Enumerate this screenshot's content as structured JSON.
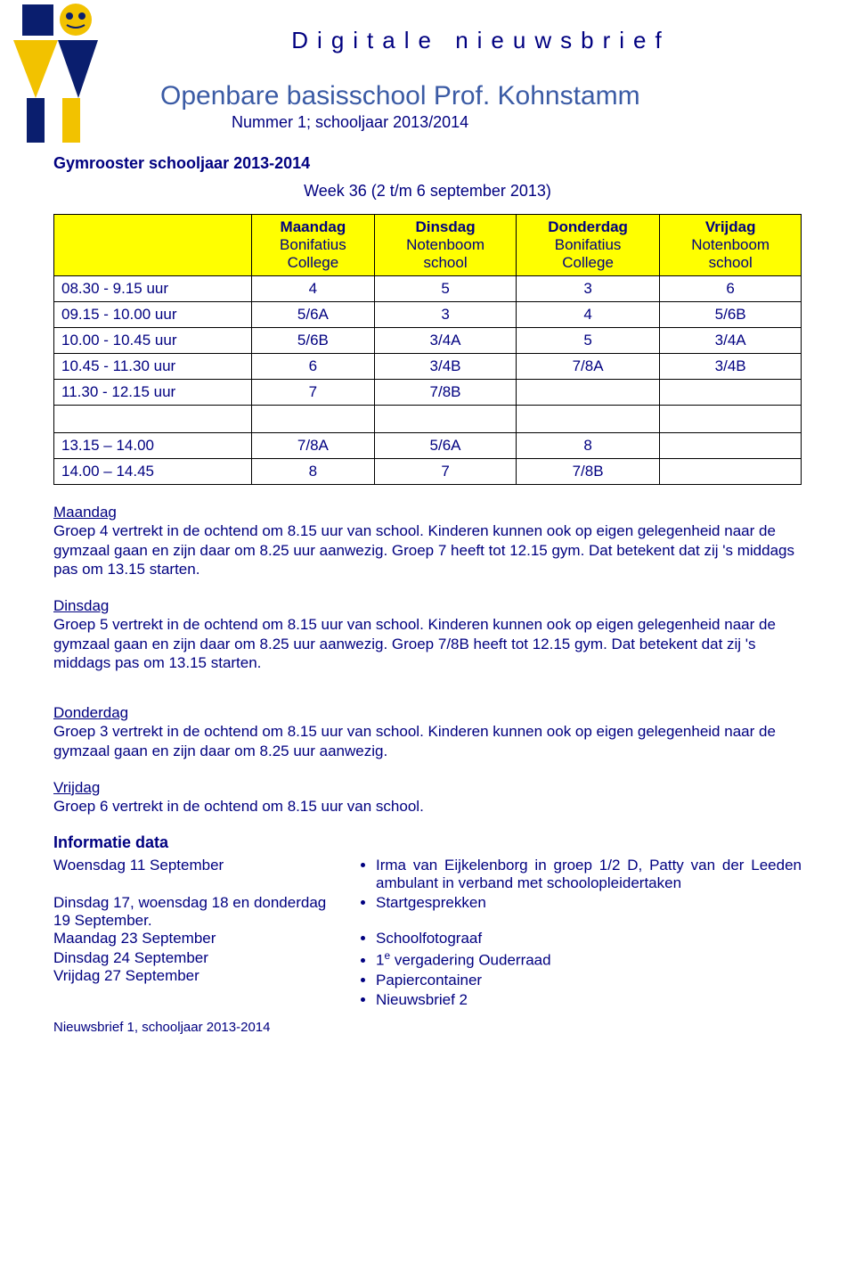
{
  "header": {
    "title_letterspaced": "Digitale nieuwsbrief",
    "subtitle": "Openbare basisschool Prof. Kohnstamm",
    "subline": "Nummer 1; schooljaar 2013/2014"
  },
  "gym": {
    "section_title": "Gymrooster schooljaar 2013-2014",
    "week_line": "Week 36  (2 t/m 6 september 2013)",
    "columns": [
      {
        "day": "Maandag",
        "loc1": "Bonifatius",
        "loc2": "College"
      },
      {
        "day": "Dinsdag",
        "loc1": "Notenboom",
        "loc2": "school"
      },
      {
        "day": "Donderdag",
        "loc1": "Bonifatius",
        "loc2": "College"
      },
      {
        "day": "Vrijdag",
        "loc1": "Notenboom",
        "loc2": "school"
      }
    ],
    "rows": [
      {
        "time": "08.30 - 9.15 uur",
        "cells": [
          "4",
          "5",
          "3",
          "6"
        ]
      },
      {
        "time": "09.15 - 10.00 uur",
        "cells": [
          "5/6A",
          "3",
          "4",
          "5/6B"
        ]
      },
      {
        "time": "10.00 - 10.45 uur",
        "cells": [
          "5/6B",
          "3/4A",
          "5",
          "3/4A"
        ]
      },
      {
        "time": "10.45 - 11.30 uur",
        "cells": [
          "6",
          "3/4B",
          "7/8A",
          "3/4B"
        ]
      },
      {
        "time": "11.30 - 12.15 uur",
        "cells": [
          "7",
          "7/8B",
          "",
          ""
        ]
      }
    ],
    "rows2": [
      {
        "time": "13.15 – 14.00",
        "cells": [
          "7/8A",
          "5/6A",
          "8",
          ""
        ]
      },
      {
        "time": "14.00 – 14.45",
        "cells": [
          "8",
          "7",
          "7/8B",
          ""
        ]
      }
    ]
  },
  "para": {
    "maandag_h": "Maandag",
    "maandag_t": "Groep 4 vertrekt in de ochtend om 8.15 uur van school. Kinderen kunnen ook op eigen gelegenheid naar de gymzaal gaan en zijn daar om 8.25 uur aanwezig. Groep  7 heeft tot 12.15 gym. Dat betekent dat zij 's middags pas om 13.15 starten.",
    "dinsdag_h": "Dinsdag",
    "dinsdag_t": "Groep 5 vertrekt in de ochtend om 8.15 uur van school. Kinderen kunnen ook op eigen gelegenheid naar de gymzaal gaan en zijn daar om 8.25 uur aanwezig. Groep 7/8B heeft  tot 12.15 gym. Dat betekent dat zij 's middags pas om 13.15 starten.",
    "donderdag_h": "Donderdag",
    "donderdag_t": "Groep  3 vertrekt in de ochtend om 8.15 uur van school. Kinderen kunnen ook op eigen gelegenheid naar de gymzaal gaan en zijn daar om 8.25 uur aanwezig.",
    "vrijdag_h": "Vrijdag",
    "vrijdag_t": "Groep 6 vertrekt in de ochtend om 8.15 uur van school."
  },
  "info": {
    "title": "Informatie data",
    "items": [
      {
        "left": "Woensdag 11 September",
        "right": [
          "Irma van Eijkelenborg in groep 1/2 D, Patty van der Leeden ambulant in verband met schoolopleidertaken"
        ]
      },
      {
        "left": "Dinsdag 17, woensdag 18 en donderdag 19 September.",
        "right": [
          "Startgesprekken"
        ]
      },
      {
        "left": "Maandag 23 September",
        "right": [
          "Schoolfotograaf"
        ]
      },
      {
        "left": "Dinsdag 24 September",
        "right": [
          "1e vergadering Ouderraad",
          "Papiercontainer",
          "Nieuwsbrief 2"
        ],
        "left2": "Vrijdag 27 September",
        "sup_first": true
      }
    ]
  },
  "footer": "Nieuwsbrief 1, schooljaar 2013-2014",
  "colors": {
    "text": "#000080",
    "subtitle": "#3b5ba5",
    "highlight": "#ffff00",
    "border": "#000000",
    "logo_blue": "#0a1e6e",
    "logo_yellow": "#f2c200"
  }
}
